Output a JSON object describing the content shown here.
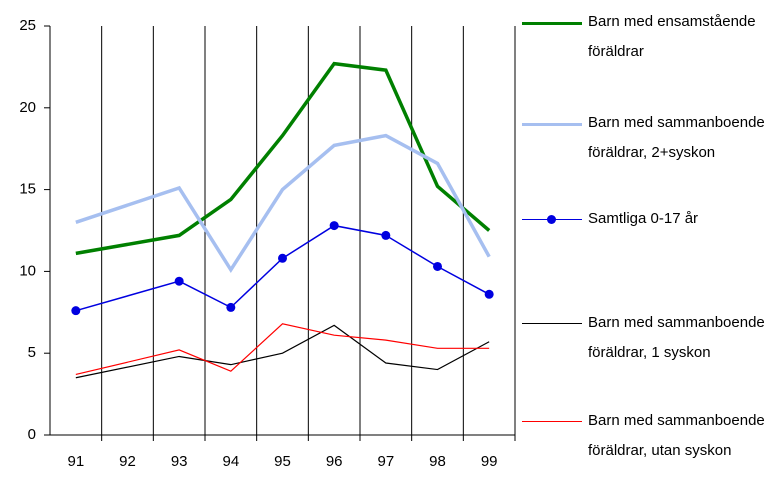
{
  "chart_data": {
    "type": "line",
    "x": [
      91,
      93,
      94,
      95,
      96,
      97,
      98,
      99
    ],
    "xlim": [
      90.5,
      99.5
    ],
    "xticks": [
      91,
      92,
      93,
      94,
      95,
      96,
      97,
      98,
      99
    ],
    "ylim": [
      0,
      25
    ],
    "yticks": [
      0,
      5,
      10,
      15,
      20,
      25
    ],
    "grid": true,
    "legend": "right",
    "series": [
      {
        "name": "Barn med ensamstående föräldrar",
        "color": "#008000",
        "values": [
          11.1,
          12.2,
          14.4,
          18.3,
          22.7,
          22.3,
          15.2,
          12.5
        ]
      },
      {
        "name": "Barn med sammanboende föräldrar, 2+syskon",
        "color": "#a6bff0",
        "values": [
          13.0,
          15.1,
          10.1,
          15.0,
          17.7,
          18.3,
          16.6,
          10.9
        ]
      },
      {
        "name": "Samtliga 0-17 år",
        "color": "#0000e0",
        "marker": "circle",
        "values": [
          7.6,
          9.4,
          7.8,
          10.8,
          12.8,
          12.2,
          10.3,
          8.6
        ]
      },
      {
        "name": "Barn med sammanboende föräldrar, 1 syskon",
        "color": "#000000",
        "values": [
          3.5,
          4.8,
          4.3,
          5.0,
          6.7,
          4.4,
          4.0,
          5.7
        ]
      },
      {
        "name": "Barn med sammanboende föräldrar, utan syskon",
        "color": "#ff0000",
        "values": [
          3.7,
          5.2,
          3.9,
          6.8,
          6.1,
          5.8,
          5.3,
          5.3
        ]
      }
    ]
  }
}
